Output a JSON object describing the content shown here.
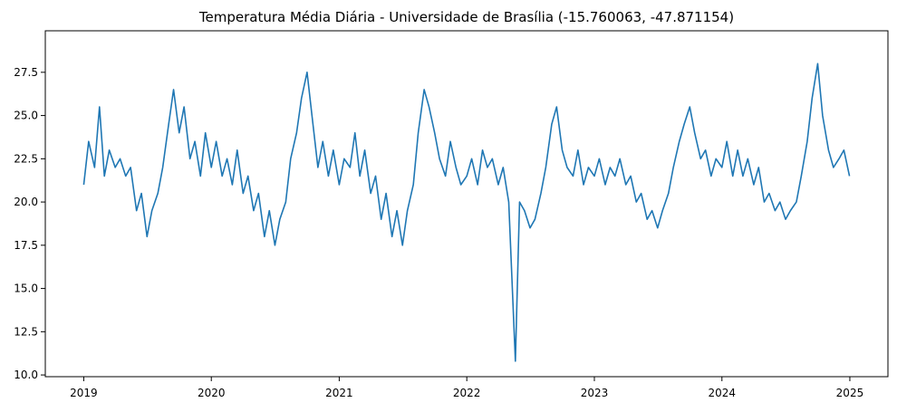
{
  "chart_data": {
    "type": "line",
    "title": "Temperatura Média Diária - Universidade de Brasília (-15.760063, -47.871154)",
    "xlabel": "",
    "ylabel": "",
    "x_range": [
      "2019-01-01",
      "2024-12-31"
    ],
    "xlim": [
      "2018-09-13",
      "2025-04-20"
    ],
    "ylim": [
      9.9,
      29.9
    ],
    "x_ticks": [
      "2019",
      "2020",
      "2021",
      "2022",
      "2023",
      "2024",
      "2025"
    ],
    "y_ticks": [
      "10.0",
      "12.5",
      "15.0",
      "17.5",
      "20.0",
      "22.5",
      "25.0",
      "27.5"
    ],
    "grid": false,
    "legend": false,
    "line_color": "#1f77b4",
    "series": [
      {
        "x": [
          "2019-01-01",
          "2019-01-15",
          "2019-02-01",
          "2019-02-15",
          "2019-03-01",
          "2019-03-15",
          "2019-04-01",
          "2019-04-15",
          "2019-05-01",
          "2019-05-15",
          "2019-06-01",
          "2019-06-15",
          "2019-07-01",
          "2019-07-15",
          "2019-08-01",
          "2019-08-15",
          "2019-09-01",
          "2019-09-15",
          "2019-10-01",
          "2019-10-15",
          "2019-11-01",
          "2019-11-15",
          "2019-12-01",
          "2019-12-15",
          "2020-01-01",
          "2020-01-15",
          "2020-02-01",
          "2020-02-15",
          "2020-03-01",
          "2020-03-15",
          "2020-04-01",
          "2020-04-15",
          "2020-05-01",
          "2020-05-15",
          "2020-06-01",
          "2020-06-15",
          "2020-07-01",
          "2020-07-15",
          "2020-08-01",
          "2020-08-15",
          "2020-09-01",
          "2020-09-15",
          "2020-10-01",
          "2020-10-15",
          "2020-11-01",
          "2020-11-15",
          "2020-12-01",
          "2020-12-15",
          "2021-01-01",
          "2021-01-15",
          "2021-02-01",
          "2021-02-15",
          "2021-03-01",
          "2021-03-15",
          "2021-04-01",
          "2021-04-15",
          "2021-05-01",
          "2021-05-15",
          "2021-06-01",
          "2021-06-15",
          "2021-07-01",
          "2021-07-15",
          "2021-08-01",
          "2021-08-15",
          "2021-09-01",
          "2021-09-15",
          "2021-10-01",
          "2021-10-15",
          "2021-11-01",
          "2021-11-15",
          "2021-12-01",
          "2021-12-15",
          "2022-01-01",
          "2022-01-15",
          "2022-02-01",
          "2022-02-15",
          "2022-03-01",
          "2022-03-15",
          "2022-04-01",
          "2022-04-15",
          "2022-05-01",
          "2022-05-20",
          "2022-06-01",
          "2022-06-15",
          "2022-07-01",
          "2022-07-15",
          "2022-08-01",
          "2022-08-15",
          "2022-09-01",
          "2022-09-15",
          "2022-10-01",
          "2022-10-15",
          "2022-11-01",
          "2022-11-15",
          "2022-12-01",
          "2022-12-15",
          "2023-01-01",
          "2023-01-15",
          "2023-02-01",
          "2023-02-15",
          "2023-03-01",
          "2023-03-15",
          "2023-04-01",
          "2023-04-15",
          "2023-05-01",
          "2023-05-15",
          "2023-06-01",
          "2023-06-15",
          "2023-07-01",
          "2023-07-15",
          "2023-08-01",
          "2023-08-15",
          "2023-09-01",
          "2023-09-15",
          "2023-10-01",
          "2023-10-15",
          "2023-11-01",
          "2023-11-15",
          "2023-12-01",
          "2023-12-15",
          "2024-01-01",
          "2024-01-15",
          "2024-02-01",
          "2024-02-15",
          "2024-03-01",
          "2024-03-15",
          "2024-04-01",
          "2024-04-15",
          "2024-05-01",
          "2024-05-15",
          "2024-06-01",
          "2024-06-15",
          "2024-07-01",
          "2024-07-15",
          "2024-08-01",
          "2024-08-15",
          "2024-09-01",
          "2024-09-15",
          "2024-10-01",
          "2024-10-15",
          "2024-11-01",
          "2024-11-15",
          "2024-12-01",
          "2024-12-15",
          "2024-12-31"
        ],
        "y": [
          21.0,
          23.5,
          22.0,
          25.5,
          21.5,
          23.0,
          22.0,
          22.5,
          21.5,
          22.0,
          19.5,
          20.5,
          18.0,
          19.5,
          20.5,
          22.0,
          24.5,
          26.5,
          24.0,
          25.5,
          22.5,
          23.5,
          21.5,
          24.0,
          22.0,
          23.5,
          21.5,
          22.5,
          21.0,
          23.0,
          20.5,
          21.5,
          19.5,
          20.5,
          18.0,
          19.5,
          17.5,
          19.0,
          20.0,
          22.5,
          24.0,
          26.0,
          27.5,
          25.0,
          22.0,
          23.5,
          21.5,
          23.0,
          21.0,
          22.5,
          22.0,
          24.0,
          21.5,
          23.0,
          20.5,
          21.5,
          19.0,
          20.5,
          18.0,
          19.5,
          17.5,
          19.5,
          21.0,
          24.0,
          26.5,
          25.5,
          24.0,
          22.5,
          21.5,
          23.5,
          22.0,
          21.0,
          21.5,
          22.5,
          21.0,
          23.0,
          22.0,
          22.5,
          21.0,
          22.0,
          20.0,
          10.8,
          20.0,
          19.5,
          18.5,
          19.0,
          20.5,
          22.0,
          24.5,
          25.5,
          23.0,
          22.0,
          21.5,
          23.0,
          21.0,
          22.0,
          21.5,
          22.5,
          21.0,
          22.0,
          21.5,
          22.5,
          21.0,
          21.5,
          20.0,
          20.5,
          19.0,
          19.5,
          18.5,
          19.5,
          20.5,
          22.0,
          23.5,
          24.5,
          25.5,
          24.0,
          22.5,
          23.0,
          21.5,
          22.5,
          22.0,
          23.5,
          21.5,
          23.0,
          21.5,
          22.5,
          21.0,
          22.0,
          20.0,
          20.5,
          19.5,
          20.0,
          19.0,
          19.5,
          20.0,
          21.5,
          23.5,
          26.0,
          28.0,
          25.0,
          23.0,
          22.0,
          22.5,
          23.0,
          21.5
        ]
      }
    ]
  }
}
